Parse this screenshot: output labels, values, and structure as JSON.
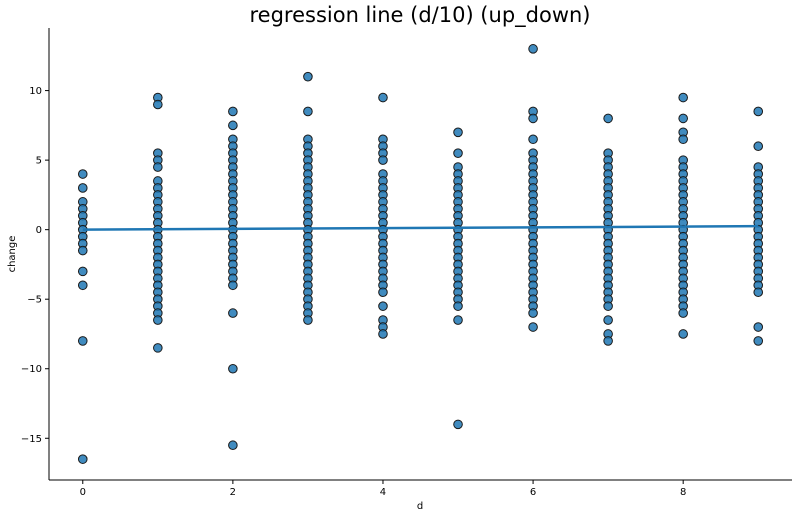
{
  "chart_data": {
    "type": "scatter",
    "title": "regression line (d/10) (up_down)",
    "xlabel": "d",
    "ylabel": "change",
    "xlim": [
      -0.45,
      9.45
    ],
    "ylim": [
      -18,
      14.5
    ],
    "xticks": [
      0,
      2,
      4,
      6,
      8
    ],
    "yticks": [
      -15,
      -10,
      -5,
      0,
      5,
      10
    ],
    "xtick_labels": [
      "0",
      "2",
      "4",
      "6",
      "8"
    ],
    "ytick_labels": [
      "−15",
      "−10",
      "−5",
      "0",
      "5",
      "10"
    ],
    "grid": false,
    "marker_color": "#1f77b4",
    "marker_edge_color": "#1a1a1a",
    "line_color": "#1f77b4",
    "regression": {
      "x": [
        0,
        9
      ],
      "y": [
        0.0,
        0.25
      ]
    },
    "points": [
      {
        "x": 0,
        "y": [
          4,
          3,
          2,
          1.5,
          1,
          0.5,
          0,
          -0.5,
          -1,
          -1.5,
          -3,
          -4,
          -8,
          -16.5
        ]
      },
      {
        "x": 1,
        "y": [
          9.5,
          9,
          5.5,
          5,
          4.5,
          3.5,
          3,
          2.5,
          2,
          1.5,
          1,
          0.5,
          0,
          -0.5,
          -1,
          -1.5,
          -2,
          -2.5,
          -3,
          -3.5,
          -4,
          -4.5,
          -5,
          -5.5,
          -6,
          -6.5,
          -8.5
        ]
      },
      {
        "x": 2,
        "y": [
          8.5,
          7.5,
          6.5,
          6,
          5.5,
          5,
          4.5,
          4,
          3.5,
          3,
          2.5,
          2,
          1.5,
          1,
          0.5,
          0,
          -0.5,
          -1,
          -1.5,
          -2,
          -2.5,
          -3,
          -3.5,
          -4,
          -6,
          -10,
          -15.5
        ]
      },
      {
        "x": 3,
        "y": [
          11,
          8.5,
          6.5,
          6,
          5.5,
          5,
          4.5,
          4,
          3.5,
          3,
          2.5,
          2,
          1.5,
          1,
          0.5,
          0,
          -0.5,
          -1,
          -1.5,
          -2,
          -2.5,
          -3,
          -3.5,
          -4,
          -4.5,
          -5,
          -5.5,
          -6,
          -6.5
        ]
      },
      {
        "x": 4,
        "y": [
          9.5,
          6.5,
          6,
          5.5,
          5,
          4,
          3.5,
          3,
          2.5,
          2,
          1.5,
          1,
          0.5,
          0,
          -0.5,
          -1,
          -1.5,
          -2,
          -2.5,
          -3,
          -3.5,
          -4,
          -4.5,
          -5.5,
          -6.5,
          -7,
          -7.5
        ]
      },
      {
        "x": 5,
        "y": [
          7,
          5.5,
          4.5,
          4,
          3.5,
          3,
          2.5,
          2,
          1.5,
          1,
          0.5,
          0,
          -0.5,
          -1,
          -1.5,
          -2,
          -2.5,
          -3,
          -3.5,
          -4,
          -4.5,
          -5,
          -5.5,
          -6.5,
          -14
        ]
      },
      {
        "x": 6,
        "y": [
          13,
          8.5,
          8,
          6.5,
          5.5,
          5,
          4.5,
          4,
          3.5,
          3,
          2.5,
          2,
          1.5,
          1,
          0.5,
          0,
          -0.5,
          -1,
          -1.5,
          -2,
          -2.5,
          -3,
          -3.5,
          -4,
          -4.5,
          -5,
          -5.5,
          -6,
          -7
        ]
      },
      {
        "x": 7,
        "y": [
          8,
          5.5,
          5,
          4.5,
          4,
          3.5,
          3,
          2.5,
          2,
          1.5,
          1,
          0.5,
          0,
          -0.5,
          -1,
          -1.5,
          -2,
          -2.5,
          -3,
          -3.5,
          -4,
          -4.5,
          -5,
          -5.5,
          -6.5,
          -7.5,
          -8
        ]
      },
      {
        "x": 8,
        "y": [
          9.5,
          8,
          7,
          6.5,
          5,
          4.5,
          4,
          3.5,
          3,
          2.5,
          2,
          1.5,
          1,
          0.5,
          0,
          -0.5,
          -1,
          -1.5,
          -2,
          -2.5,
          -3,
          -3.5,
          -4,
          -4.5,
          -5,
          -5.5,
          -6,
          -7.5
        ]
      },
      {
        "x": 9,
        "y": [
          8.5,
          6,
          4.5,
          4,
          3.5,
          3,
          2.5,
          2,
          1.5,
          1,
          0.5,
          0,
          -0.5,
          -1,
          -1.5,
          -2,
          -2.5,
          -3,
          -3.5,
          -4,
          -4.5,
          -7,
          -8
        ]
      }
    ]
  }
}
